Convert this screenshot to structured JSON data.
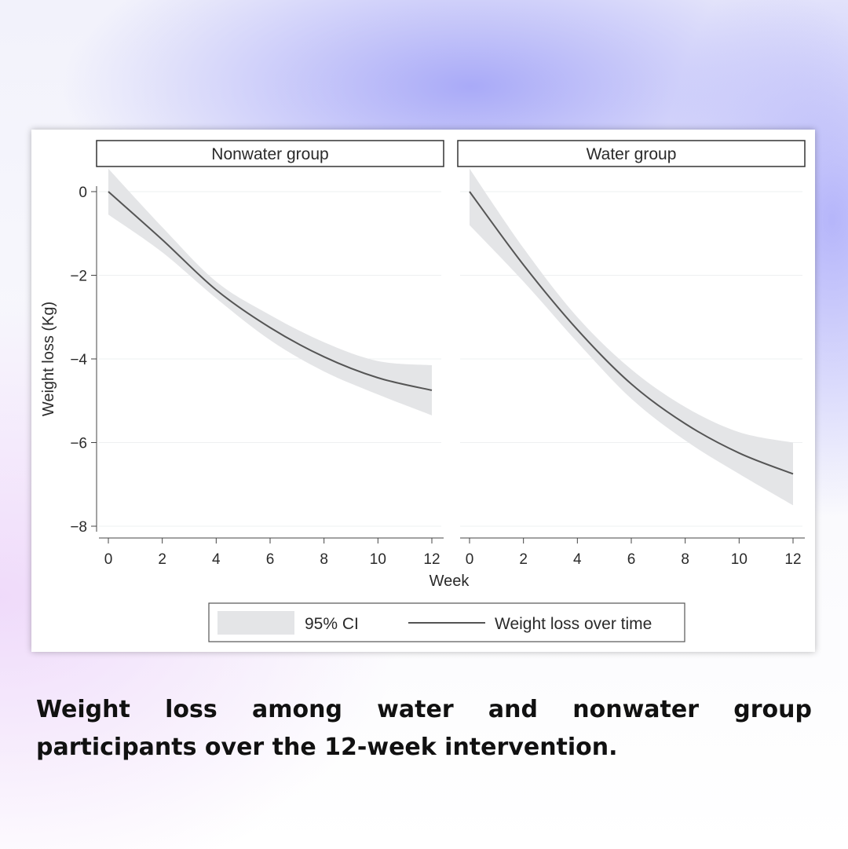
{
  "chart_data": {
    "type": "line",
    "xlabel": "Week",
    "ylabel": "Weight loss (Kg)",
    "xlim": [
      0,
      12
    ],
    "ylim": [
      -8,
      0
    ],
    "xticks": [
      "0",
      "2",
      "4",
      "6",
      "8",
      "10",
      "12"
    ],
    "yticks": [
      "0",
      "−2",
      "−4",
      "−6",
      "−8"
    ],
    "grid": true,
    "legend_position": "bottom",
    "legend": {
      "band_label": "95% CI",
      "line_label": "Weight loss over time"
    },
    "colors": {
      "line": "#555555",
      "band": "#e4e5e7",
      "grid": "#eef0f1"
    },
    "panels": [
      {
        "title": "Nonwater group",
        "x": [
          0,
          2,
          4,
          6,
          8,
          10,
          12
        ],
        "y": [
          0,
          -1.15,
          -2.35,
          -3.25,
          -3.95,
          -4.45,
          -4.75
        ],
        "ci_lower": [
          -0.55,
          -1.45,
          -2.55,
          -3.55,
          -4.3,
          -4.85,
          -5.35
        ],
        "ci_upper": [
          0.55,
          -0.85,
          -2.15,
          -2.95,
          -3.6,
          -4.05,
          -4.15
        ]
      },
      {
        "title": "Water group",
        "x": [
          0,
          2,
          4,
          6,
          8,
          10,
          12
        ],
        "y": [
          0,
          -1.75,
          -3.3,
          -4.6,
          -5.55,
          -6.25,
          -6.75
        ],
        "ci_lower": [
          -0.8,
          -2.15,
          -3.6,
          -4.95,
          -5.95,
          -6.75,
          -7.5
        ],
        "ci_upper": [
          0.55,
          -1.35,
          -3.0,
          -4.25,
          -5.15,
          -5.75,
          -6.0
        ]
      }
    ]
  },
  "caption": "Weight loss among water and nonwater group participants over the 12-week intervention."
}
